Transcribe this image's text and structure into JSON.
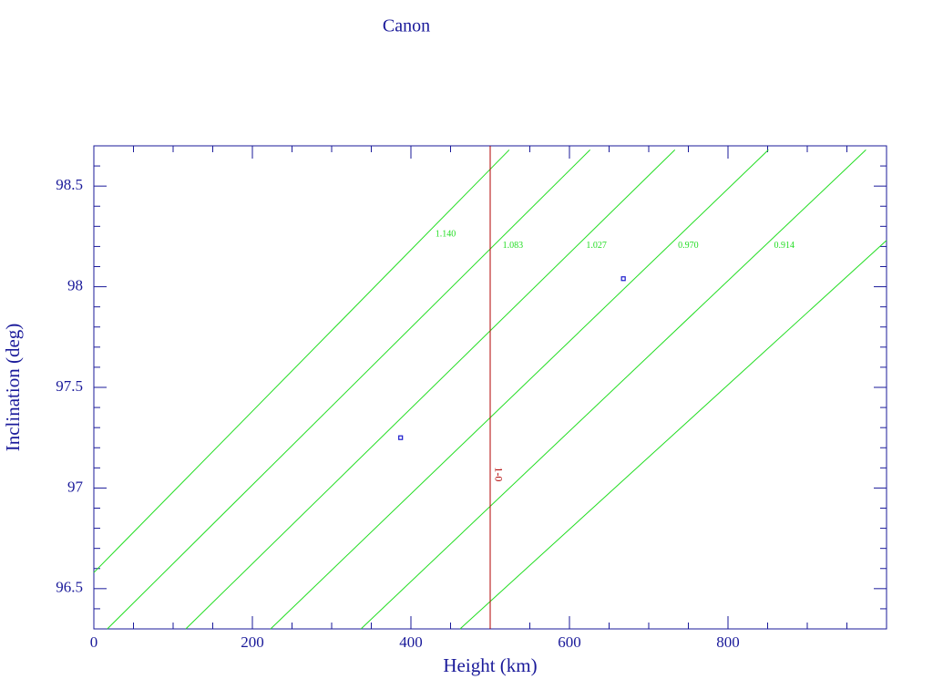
{
  "chart_data": {
    "type": "line",
    "title": "Canon",
    "x_label": "Height (km)",
    "y_label": "Inclination (deg)",
    "xlim": [
      0,
      1000
    ],
    "ylim": [
      96.3,
      98.7
    ],
    "xticks": [
      0,
      200,
      400,
      600,
      800
    ],
    "yticks": [
      96.5,
      97,
      97.5,
      98,
      98.5
    ],
    "xminorticks": [
      50,
      100,
      150,
      250,
      300,
      350,
      450,
      500,
      550,
      650,
      700,
      750,
      850,
      900,
      950
    ],
    "yminorticks": [
      96.4,
      96.6,
      96.7,
      96.8,
      96.9,
      97.1,
      97.2,
      97.3,
      97.4,
      97.6,
      97.7,
      97.8,
      97.9,
      98.1,
      98.2,
      98.3,
      98.4,
      98.6
    ],
    "series": [
      {
        "name": "1.140",
        "color": "#22dd22",
        "x": [
          0,
          524
        ],
        "values": [
          96.58,
          98.68
        ]
      },
      {
        "name": "1.083",
        "color": "#22dd22",
        "x": [
          17,
          626
        ],
        "values": [
          96.3,
          98.68
        ]
      },
      {
        "name": "1.027",
        "color": "#22dd22",
        "x": [
          116,
          733
        ],
        "values": [
          96.3,
          98.68
        ]
      },
      {
        "name": "0.970",
        "color": "#22dd22",
        "x": [
          223,
          851
        ],
        "values": [
          96.3,
          98.68
        ]
      },
      {
        "name": "0.914",
        "color": "#22dd22",
        "x": [
          337,
          974
        ],
        "values": [
          96.3,
          98.68
        ]
      },
      {
        "color": "#22dd22",
        "x": [
          462,
          1000
        ],
        "values": [
          96.3,
          98.23
        ]
      },
      {
        "name": "1-0",
        "color": "#b00000",
        "x": [
          500,
          500
        ],
        "values": [
          96.3,
          98.7
        ]
      },
      {
        "type": "scatter",
        "color": "#1a1acc",
        "x": [
          387,
          668
        ],
        "values": [
          97.25,
          98.04
        ]
      }
    ]
  }
}
